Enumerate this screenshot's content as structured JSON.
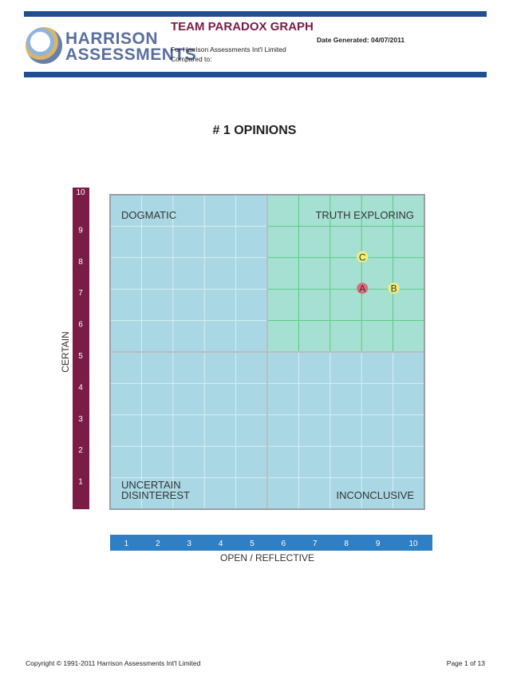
{
  "header": {
    "title": "TEAM PARADOX GRAPH",
    "date_generated": "Date Generated: 04/07/2011",
    "for_line": "For Harrison Assessments Int'l Limited",
    "compared_to": "Compared to:",
    "logo_line1": "HARRISON",
    "logo_line2": "ASSESSMENTS"
  },
  "colors": {
    "header_bar": "#1f4e91",
    "title": "#7a1c45",
    "y_bar": "#7a1c45",
    "x_bar": "#2e7fc4",
    "plot_bg": "#a9d8e4",
    "quadrant_highlight": "#a6e0d2",
    "highlight_grid": "#4fc97a",
    "marker_red": "#e06a7a",
    "marker_yellow": "#f2f07a"
  },
  "chart_data": {
    "type": "scatter",
    "title": "# 1 OPINIONS",
    "xlabel": "OPEN / REFLECTIVE",
    "ylabel": "CERTAIN",
    "xlim": [
      0,
      10
    ],
    "ylim": [
      0,
      10
    ],
    "x_ticks": [
      "1",
      "2",
      "3",
      "4",
      "5",
      "6",
      "7",
      "8",
      "9",
      "10"
    ],
    "y_ticks": [
      "1",
      "2",
      "3",
      "4",
      "5",
      "6",
      "7",
      "8",
      "9",
      "10"
    ],
    "grid": true,
    "quadrants": {
      "top_left": "DOGMATIC",
      "top_right": "TRUTH EXPLORING",
      "bottom_left_1": "UNCERTAIN",
      "bottom_left_2": "DISINTEREST",
      "bottom_right": "INCONCLUSIVE"
    },
    "points": [
      {
        "label": "C",
        "x": 8,
        "y": 8,
        "color": "#f2f07a"
      },
      {
        "label": "A",
        "x": 8,
        "y": 7,
        "color": "#e06a7a"
      },
      {
        "label": "B",
        "x": 9,
        "y": 7,
        "color": "#f2f07a"
      }
    ]
  },
  "footer": {
    "copyright": "Copyright © 1991-2011 Harrison Assessments Int'l Limited",
    "page": "Page 1 of 13"
  }
}
